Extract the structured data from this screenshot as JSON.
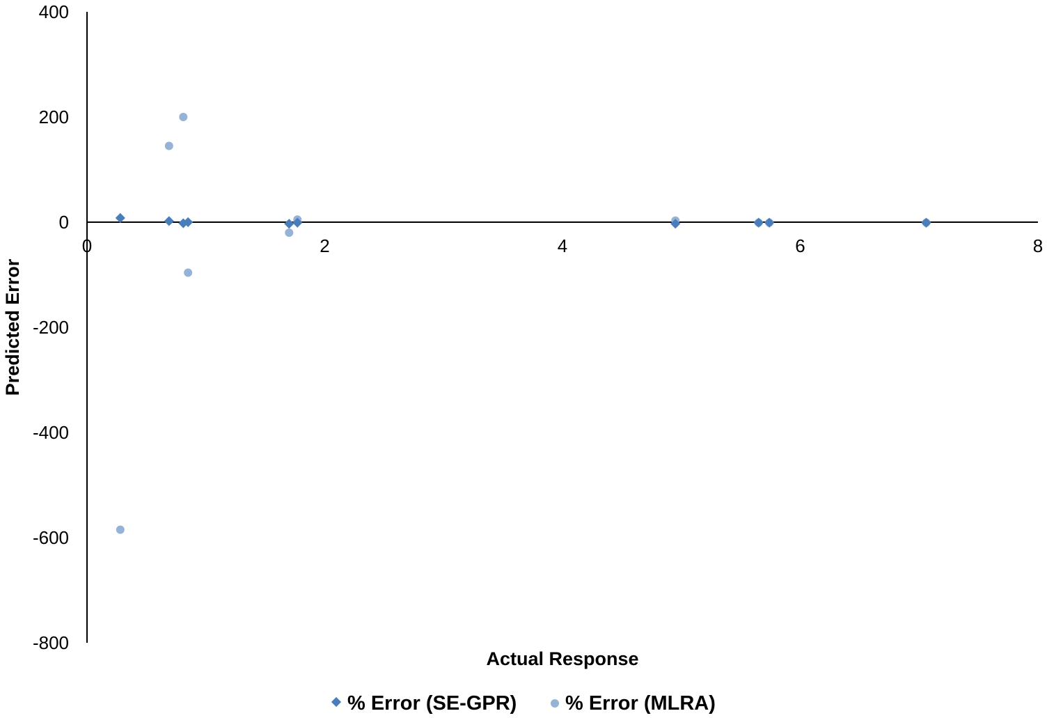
{
  "chart_data": {
    "type": "scatter",
    "title": "",
    "xlabel": "Actual Response",
    "ylabel": "Predicted Error",
    "xlim": [
      0,
      8
    ],
    "ylim": [
      -800,
      400
    ],
    "x_ticks": [
      0,
      2,
      4,
      6,
      8
    ],
    "y_ticks": [
      400,
      200,
      0,
      -200,
      -400,
      -600,
      -800
    ],
    "grid": false,
    "legend_position": "bottom",
    "series": [
      {
        "name": "% Error (SE-GPR)",
        "marker": "diamond",
        "color": "#4a7ebb",
        "points": [
          [
            0.28,
            8
          ],
          [
            0.69,
            2
          ],
          [
            0.81,
            -2
          ],
          [
            0.85,
            0
          ],
          [
            1.7,
            -3
          ],
          [
            1.77,
            -1
          ],
          [
            4.95,
            -3
          ],
          [
            5.65,
            -1
          ],
          [
            5.74,
            -1
          ],
          [
            7.06,
            -1
          ]
        ]
      },
      {
        "name": "% Error (MLRA)",
        "marker": "circle",
        "color": "#95b3d7",
        "points": [
          [
            0.28,
            -585
          ],
          [
            0.69,
            145
          ],
          [
            0.81,
            200
          ],
          [
            0.85,
            -96
          ],
          [
            1.7,
            -20
          ],
          [
            1.77,
            5
          ],
          [
            4.95,
            3
          ],
          [
            5.65,
            -1
          ],
          [
            5.74,
            -1
          ],
          [
            7.06,
            -1
          ]
        ]
      }
    ]
  }
}
